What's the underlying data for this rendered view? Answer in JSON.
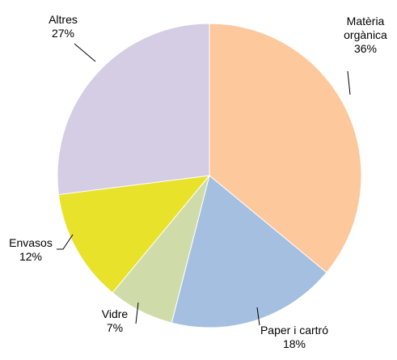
{
  "chart_data": {
    "type": "pie",
    "categories": [
      "Matèria orgànica",
      "Paper i cartró",
      "Vidre",
      "Envasos",
      "Altres"
    ],
    "values": [
      36,
      18,
      7,
      12,
      27
    ],
    "value_labels": [
      "36%",
      "18%",
      "7%",
      "12%",
      "27%"
    ],
    "colors": [
      "#fdc89b",
      "#a4bfe0",
      "#cfdcaa",
      "#e8e22a",
      "#d4cde3"
    ]
  }
}
